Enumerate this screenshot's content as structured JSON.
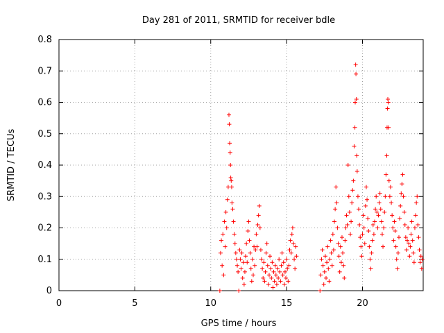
{
  "chart_data": {
    "type": "scatter",
    "title": "Day 281 of 2011, SRMTID for receiver bdle",
    "xlabel": "GPS time / hours",
    "ylabel": "SRMTID / TECUs",
    "xlim": [
      0,
      24
    ],
    "ylim": [
      0,
      0.8
    ],
    "xticks": [
      0,
      5,
      10,
      15,
      20
    ],
    "yticks": [
      0,
      0.1,
      0.2,
      0.3,
      0.4,
      0.5,
      0.6,
      0.7,
      0.8
    ],
    "xtick_labels": [
      "0",
      "5",
      "10",
      "15",
      "20"
    ],
    "ytick_labels": [
      "0",
      "0.1",
      "0.2",
      "0.3",
      "0.4",
      "0.5",
      "0.6",
      "0.7",
      "0.8"
    ],
    "grid": true,
    "marker": "+",
    "color": "#ff0000",
    "series": [
      {
        "name": "SRMTID",
        "points": [
          [
            10.6,
            0.0
          ],
          [
            10.65,
            0.12
          ],
          [
            10.7,
            0.16
          ],
          [
            10.75,
            0.08
          ],
          [
            10.8,
            0.18
          ],
          [
            10.85,
            0.05
          ],
          [
            10.9,
            0.22
          ],
          [
            10.95,
            0.14
          ],
          [
            11.0,
            0.25
          ],
          [
            11.05,
            0.2
          ],
          [
            11.1,
            0.29
          ],
          [
            11.15,
            0.33
          ],
          [
            11.2,
            0.56
          ],
          [
            11.22,
            0.53
          ],
          [
            11.25,
            0.47
          ],
          [
            11.28,
            0.44
          ],
          [
            11.3,
            0.4
          ],
          [
            11.32,
            0.36
          ],
          [
            11.35,
            0.35
          ],
          [
            11.38,
            0.33
          ],
          [
            11.4,
            0.28
          ],
          [
            11.45,
            0.26
          ],
          [
            11.5,
            0.22
          ],
          [
            11.55,
            0.18
          ],
          [
            11.6,
            0.15
          ],
          [
            11.65,
            0.12
          ],
          [
            11.7,
            0.1
          ],
          [
            11.75,
            0.08
          ],
          [
            11.8,
            0.06
          ],
          [
            11.85,
            0.0
          ],
          [
            11.9,
            0.13
          ],
          [
            11.95,
            0.1
          ],
          [
            12.0,
            0.07
          ],
          [
            12.05,
            0.12
          ],
          [
            12.1,
            0.04
          ],
          [
            12.15,
            0.09
          ],
          [
            12.2,
            0.02
          ],
          [
            12.25,
            0.06
          ],
          [
            12.3,
            0.11
          ],
          [
            12.35,
            0.15
          ],
          [
            12.4,
            0.09
          ],
          [
            12.45,
            0.19
          ],
          [
            12.5,
            0.22
          ],
          [
            12.55,
            0.16
          ],
          [
            12.6,
            0.12
          ],
          [
            12.65,
            0.07
          ],
          [
            12.7,
            0.03
          ],
          [
            12.75,
            0.1
          ],
          [
            12.8,
            0.05
          ],
          [
            12.85,
            0.14
          ],
          [
            12.9,
            0.08
          ],
          [
            12.95,
            0.13
          ],
          [
            13.0,
            0.18
          ],
          [
            13.05,
            0.14
          ],
          [
            13.1,
            0.21
          ],
          [
            13.15,
            0.24
          ],
          [
            13.2,
            0.27
          ],
          [
            13.25,
            0.2
          ],
          [
            13.3,
            0.13
          ],
          [
            13.35,
            0.1
          ],
          [
            13.4,
            0.07
          ],
          [
            13.45,
            0.04
          ],
          [
            13.5,
            0.09
          ],
          [
            13.55,
            0.03
          ],
          [
            13.6,
            0.06
          ],
          [
            13.65,
            0.12
          ],
          [
            13.7,
            0.15
          ],
          [
            13.75,
            0.08
          ],
          [
            13.8,
            0.02
          ],
          [
            13.85,
            0.05
          ],
          [
            13.9,
            0.11
          ],
          [
            13.95,
            0.07
          ],
          [
            14.0,
            0.04
          ],
          [
            14.05,
            0.09
          ],
          [
            14.1,
            0.01
          ],
          [
            14.15,
            0.06
          ],
          [
            14.2,
            0.03
          ],
          [
            14.25,
            0.08
          ],
          [
            14.3,
            0.05
          ],
          [
            14.35,
            0.02
          ],
          [
            14.4,
            0.07
          ],
          [
            14.45,
            0.04
          ],
          [
            14.5,
            0.1
          ],
          [
            14.55,
            0.06
          ],
          [
            14.6,
            0.03
          ],
          [
            14.65,
            0.08
          ],
          [
            14.7,
            0.12
          ],
          [
            14.75,
            0.05
          ],
          [
            14.8,
            0.09
          ],
          [
            14.85,
            0.02
          ],
          [
            14.9,
            0.06
          ],
          [
            14.95,
            0.04
          ],
          [
            15.0,
            0.1
          ],
          [
            15.05,
            0.07
          ],
          [
            15.1,
            0.03
          ],
          [
            15.15,
            0.08
          ],
          [
            15.2,
            0.13
          ],
          [
            15.25,
            0.16
          ],
          [
            15.3,
            0.12
          ],
          [
            15.35,
            0.18
          ],
          [
            15.4,
            0.2
          ],
          [
            15.45,
            0.15
          ],
          [
            15.5,
            0.1
          ],
          [
            15.55,
            0.07
          ],
          [
            15.6,
            0.14
          ],
          [
            15.65,
            0.11
          ],
          [
            17.2,
            0.0
          ],
          [
            17.25,
            0.05
          ],
          [
            17.3,
            0.1
          ],
          [
            17.35,
            0.13
          ],
          [
            17.4,
            0.08
          ],
          [
            17.45,
            0.02
          ],
          [
            17.5,
            0.06
          ],
          [
            17.55,
            0.11
          ],
          [
            17.6,
            0.04
          ],
          [
            17.65,
            0.09
          ],
          [
            17.7,
            0.14
          ],
          [
            17.75,
            0.07
          ],
          [
            17.8,
            0.03
          ],
          [
            17.85,
            0.1
          ],
          [
            17.9,
            0.16
          ],
          [
            17.95,
            0.12
          ],
          [
            18.0,
            0.08
          ],
          [
            18.05,
            0.18
          ],
          [
            18.1,
            0.13
          ],
          [
            18.15,
            0.22
          ],
          [
            18.2,
            0.26
          ],
          [
            18.25,
            0.33
          ],
          [
            18.3,
            0.28
          ],
          [
            18.35,
            0.2
          ],
          [
            18.4,
            0.15
          ],
          [
            18.45,
            0.11
          ],
          [
            18.5,
            0.06
          ],
          [
            18.55,
            0.14
          ],
          [
            18.6,
            0.09
          ],
          [
            18.65,
            0.17
          ],
          [
            18.7,
            0.12
          ],
          [
            18.75,
            0.08
          ],
          [
            18.8,
            0.04
          ],
          [
            18.85,
            0.16
          ],
          [
            18.9,
            0.2
          ],
          [
            18.95,
            0.24
          ],
          [
            19.0,
            0.21
          ],
          [
            19.05,
            0.4
          ],
          [
            19.1,
            0.3
          ],
          [
            19.15,
            0.25
          ],
          [
            19.2,
            0.18
          ],
          [
            19.25,
            0.22
          ],
          [
            19.3,
            0.28
          ],
          [
            19.35,
            0.32
          ],
          [
            19.4,
            0.35
          ],
          [
            19.45,
            0.46
          ],
          [
            19.5,
            0.52
          ],
          [
            19.52,
            0.6
          ],
          [
            19.55,
            0.72
          ],
          [
            19.57,
            0.69
          ],
          [
            19.6,
            0.61
          ],
          [
            19.62,
            0.43
          ],
          [
            19.65,
            0.38
          ],
          [
            19.7,
            0.3
          ],
          [
            19.75,
            0.26
          ],
          [
            19.8,
            0.21
          ],
          [
            19.85,
            0.17
          ],
          [
            19.9,
            0.14
          ],
          [
            19.95,
            0.11
          ],
          [
            20.0,
            0.18
          ],
          [
            20.05,
            0.24
          ],
          [
            20.1,
            0.2
          ],
          [
            20.15,
            0.15
          ],
          [
            20.2,
            0.27
          ],
          [
            20.25,
            0.33
          ],
          [
            20.3,
            0.29
          ],
          [
            20.35,
            0.23
          ],
          [
            20.4,
            0.19
          ],
          [
            20.45,
            0.14
          ],
          [
            20.5,
            0.1
          ],
          [
            20.55,
            0.07
          ],
          [
            20.6,
            0.12
          ],
          [
            20.65,
            0.16
          ],
          [
            20.7,
            0.21
          ],
          [
            20.75,
            0.18
          ],
          [
            20.8,
            0.22
          ],
          [
            20.85,
            0.26
          ],
          [
            20.9,
            0.3
          ],
          [
            20.95,
            0.25
          ],
          [
            21.0,
            0.2
          ],
          [
            21.05,
            0.24
          ],
          [
            21.1,
            0.28
          ],
          [
            21.15,
            0.31
          ],
          [
            21.2,
            0.26
          ],
          [
            21.25,
            0.22
          ],
          [
            21.3,
            0.18
          ],
          [
            21.35,
            0.14
          ],
          [
            21.4,
            0.2
          ],
          [
            21.45,
            0.25
          ],
          [
            21.5,
            0.3
          ],
          [
            21.55,
            0.37
          ],
          [
            21.6,
            0.43
          ],
          [
            21.62,
            0.52
          ],
          [
            21.65,
            0.58
          ],
          [
            21.67,
            0.61
          ],
          [
            21.7,
            0.6
          ],
          [
            21.72,
            0.52
          ],
          [
            21.75,
            0.35
          ],
          [
            21.8,
            0.3
          ],
          [
            21.85,
            0.33
          ],
          [
            21.9,
            0.28
          ],
          [
            21.95,
            0.24
          ],
          [
            22.0,
            0.2
          ],
          [
            22.05,
            0.16
          ],
          [
            22.1,
            0.22
          ],
          [
            22.15,
            0.19
          ],
          [
            22.2,
            0.14
          ],
          [
            22.25,
            0.1
          ],
          [
            22.3,
            0.07
          ],
          [
            22.35,
            0.12
          ],
          [
            22.4,
            0.17
          ],
          [
            22.45,
            0.23
          ],
          [
            22.5,
            0.27
          ],
          [
            22.55,
            0.31
          ],
          [
            22.6,
            0.34
          ],
          [
            22.65,
            0.37
          ],
          [
            22.7,
            0.3
          ],
          [
            22.75,
            0.25
          ],
          [
            22.8,
            0.21
          ],
          [
            22.85,
            0.17
          ],
          [
            22.9,
            0.13
          ],
          [
            22.95,
            0.16
          ],
          [
            23.0,
            0.2
          ],
          [
            23.05,
            0.15
          ],
          [
            23.1,
            0.11
          ],
          [
            23.15,
            0.14
          ],
          [
            23.2,
            0.18
          ],
          [
            23.25,
            0.22
          ],
          [
            23.3,
            0.16
          ],
          [
            23.35,
            0.12
          ],
          [
            23.4,
            0.09
          ],
          [
            23.45,
            0.2
          ],
          [
            23.5,
            0.24
          ],
          [
            23.55,
            0.28
          ],
          [
            23.6,
            0.3
          ],
          [
            23.65,
            0.21
          ],
          [
            23.7,
            0.17
          ],
          [
            23.75,
            0.13
          ],
          [
            23.8,
            0.09
          ],
          [
            23.85,
            0.11
          ],
          [
            23.9,
            0.07
          ],
          [
            23.95,
            0.1
          ]
        ]
      }
    ]
  }
}
